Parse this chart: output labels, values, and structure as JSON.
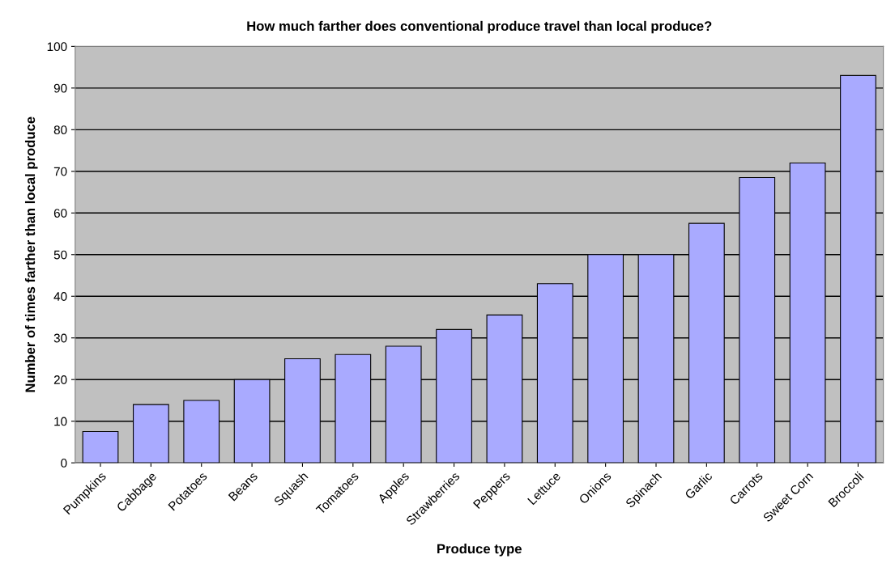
{
  "chart_data": {
    "type": "bar",
    "title": "How much farther does conventional produce travel than local produce?",
    "xlabel": "Produce type",
    "ylabel": "Number of times farther than local produce",
    "categories": [
      "Pumpkins",
      "Cabbage",
      "Potatoes",
      "Beans",
      "Squash",
      "Tomatoes",
      "Apples",
      "Strawberries",
      "Peppers",
      "Lettuce",
      "Onions",
      "Spinach",
      "Garlic",
      "Carrots",
      "Sweet Corn",
      "Broccoli"
    ],
    "values": [
      7.5,
      14,
      15,
      20,
      25,
      26,
      28,
      32,
      35.5,
      43,
      50,
      50,
      57.5,
      68.5,
      72,
      93
    ],
    "color": "#a9aaff",
    "ylim": [
      0,
      100
    ],
    "yticks": [
      0,
      10,
      20,
      30,
      40,
      50,
      60,
      70,
      80,
      90,
      100
    ],
    "grid": "y",
    "legend": false
  }
}
